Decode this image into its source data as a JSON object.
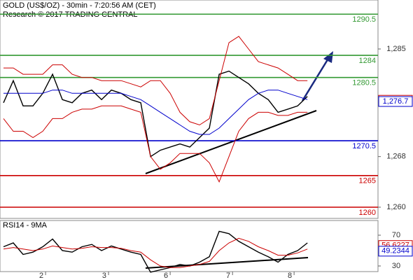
{
  "header": {
    "title": "GOLD (US$/OZ) - 30min - 7:20:56 AM (CET)",
    "subtitle": "Research © 2017 TRADING CENTRAL"
  },
  "chart_data": [
    {
      "type": "line",
      "xlim": [
        -0.36,
        38.2
      ],
      "ylim": [
        1258.23,
        1292.74
      ],
      "yticks": [
        {
          "value": 1285,
          "label": "1,285"
        },
        {
          "value": 1268,
          "label": "1,268"
        },
        {
          "value": 1260,
          "label": "1,260"
        }
      ],
      "series": [
        {
          "color": "#000000",
          "values": [
            1276.5,
            1280,
            1276,
            1276,
            1278,
            1281,
            1277,
            1276.5,
            1278,
            1278.5,
            1277,
            1278.5,
            1278,
            1277,
            1276.5,
            1268,
            1269,
            1269.5,
            1270,
            1269.5,
            1271,
            1272.5,
            1281,
            1281.5,
            1280.5,
            1279.5,
            1278,
            1277,
            1275,
            1275.5,
            1276,
            1277.5
          ]
        },
        {
          "color": "#0000cc",
          "values": [
            1278,
            1278,
            1278,
            1278,
            1278,
            1278.5,
            1278.5,
            1278,
            1278,
            1278,
            1278,
            1278,
            1278,
            1277.5,
            1277,
            1276,
            1275,
            1274,
            1273,
            1272,
            1271.5,
            1271.5,
            1272.5,
            1274,
            1275.5,
            1277,
            1278,
            1278.5,
            1278.5,
            1278,
            1277.5,
            1277
          ]
        },
        {
          "color": "#cc0000",
          "values": [
            1282,
            1282,
            1281,
            1281,
            1281,
            1282.5,
            1282.5,
            1281,
            1280.5,
            1280.5,
            1280,
            1280,
            1280,
            1279.5,
            1279,
            1280,
            1280,
            1278,
            1275,
            1273.5,
            1273,
            1274,
            1280,
            1286,
            1287,
            1285,
            1283,
            1282.5,
            1282,
            1281,
            1280,
            1280
          ]
        },
        {
          "color": "#cc0000",
          "values": [
            1274,
            1272,
            1272,
            1271,
            1272,
            1274,
            1274,
            1275,
            1275.5,
            1275.5,
            1276,
            1276,
            1276,
            1275.5,
            1275,
            1268,
            1266,
            1267,
            1268.5,
            1268.5,
            1268.5,
            1267,
            1264,
            1268,
            1272,
            1274,
            1275,
            1275,
            1274.5,
            1274.5,
            1275,
            1275
          ]
        }
      ],
      "levels": [
        {
          "value": 1290.5,
          "color": "#339933"
        },
        {
          "value": 1284,
          "color": "#339933"
        },
        {
          "value": 1280.5,
          "color": "#339933"
        },
        {
          "value": 1270.5,
          "color": "#0000cc"
        },
        {
          "value": 1265,
          "color": "#cc0000"
        },
        {
          "value": 1260,
          "color": "#cc0000"
        }
      ],
      "tags": [
        {
          "value": 1276.9,
          "label": "1,276.9",
          "color": "#cc0000"
        },
        {
          "value": 1276.7,
          "label": "1,276.7",
          "color": "#0000cc"
        }
      ]
    },
    {
      "type": "line",
      "title": "RSI14 - 9MA",
      "xlim": [
        -0.36,
        38.2
      ],
      "ylim": [
        22.7,
        89.1
      ],
      "yticks": [
        70,
        30
      ],
      "xticks": [
        {
          "value": 4.29,
          "label": "2"
        },
        {
          "value": 10.71,
          "label": "3"
        },
        {
          "value": 17,
          "label": "6"
        },
        {
          "value": 23.36,
          "label": "7"
        },
        {
          "value": 29.64,
          "label": "8"
        }
      ],
      "series": [
        {
          "color": "#000000",
          "values": [
            55,
            60,
            45,
            48,
            55,
            65,
            50,
            48,
            55,
            58,
            50,
            56,
            52,
            48,
            45,
            22,
            25,
            28,
            32,
            30,
            35,
            42,
            75,
            72,
            62,
            55,
            48,
            42,
            35,
            45,
            50,
            60
          ]
        },
        {
          "color": "#cc0000",
          "values": [
            52,
            54,
            52,
            50,
            52,
            56,
            54,
            52,
            53,
            55,
            54,
            54,
            53,
            50,
            48,
            38,
            30,
            28,
            28,
            30,
            32,
            36,
            50,
            60,
            66,
            62,
            55,
            50,
            44,
            44,
            47,
            52
          ]
        }
      ],
      "tags": [
        {
          "value": 56.6227,
          "color": "#cc0000"
        },
        {
          "value": 49.2344,
          "color": "#0000cc"
        }
      ]
    }
  ]
}
